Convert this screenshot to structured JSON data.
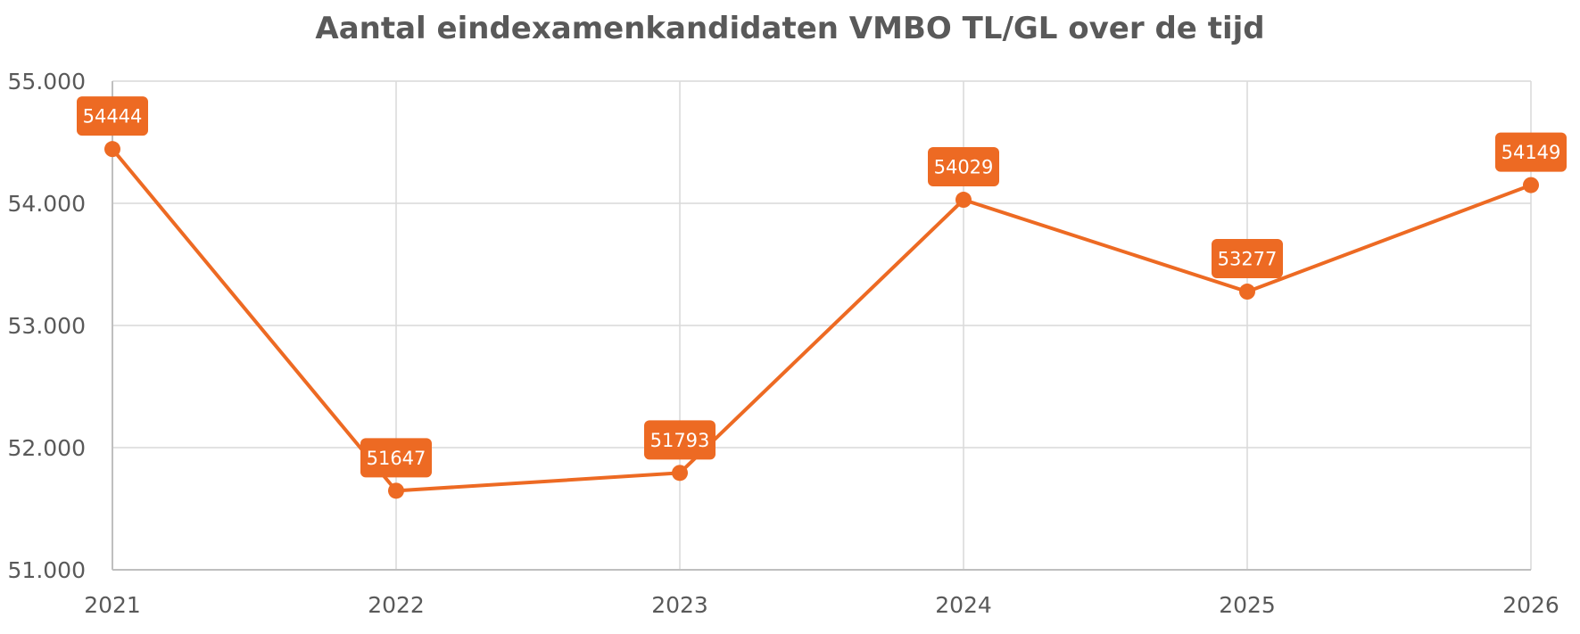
{
  "chart_data": {
    "type": "line",
    "title": "Aantal eindexamenkandidaten VMBO TL/GL over de tijd",
    "xlabel": "",
    "ylabel": "",
    "categories": [
      "2021",
      "2022",
      "2023",
      "2024",
      "2025",
      "2026"
    ],
    "series": [
      {
        "values": [
          54444,
          51647,
          51793,
          54029,
          53277,
          54149
        ],
        "color": "#ED6A23"
      }
    ],
    "ylim": [
      51000,
      55000
    ],
    "yticks": [
      51000,
      52000,
      53000,
      54000,
      55000
    ],
    "ytick_labels": [
      "51.000",
      "52.000",
      "53.000",
      "54.000",
      "55.000"
    ],
    "data_labels": [
      "54444",
      "51647",
      "51793",
      "54029",
      "53277",
      "54149"
    ],
    "grid": true,
    "legend": "none"
  }
}
